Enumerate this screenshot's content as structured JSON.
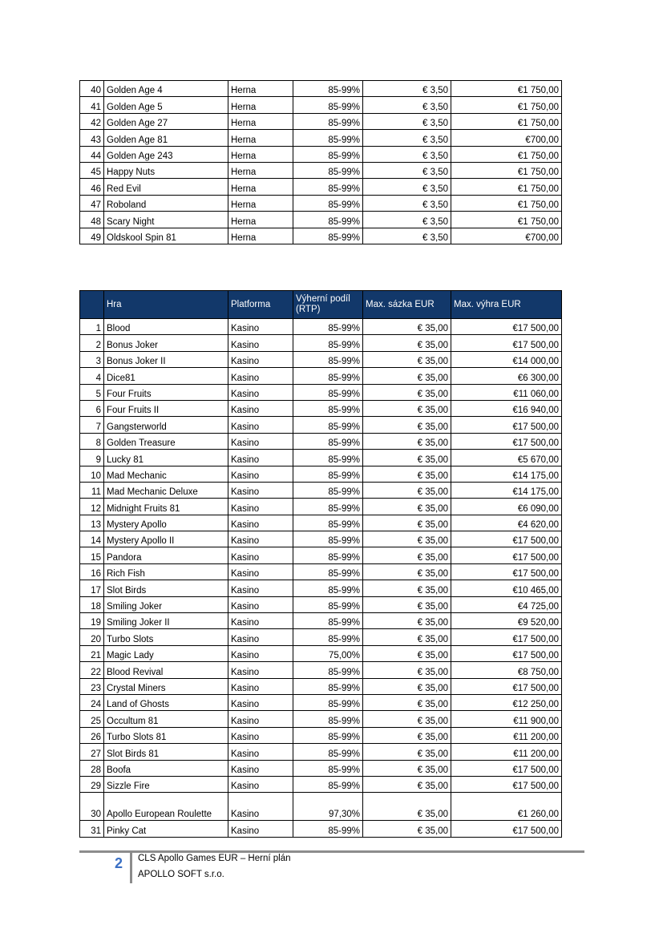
{
  "table1": {
    "rows": [
      [
        "40",
        "Golden Age 4",
        "Herna",
        "85-99%",
        "€ 3,50",
        "€1 750,00"
      ],
      [
        "41",
        "Golden Age 5",
        "Herna",
        "85-99%",
        "€ 3,50",
        "€1 750,00"
      ],
      [
        "42",
        "Golden Age 27",
        "Herna",
        "85-99%",
        "€ 3,50",
        "€1 750,00"
      ],
      [
        "43",
        "Golden Age 81",
        "Herna",
        "85-99%",
        "€ 3,50",
        "€700,00"
      ],
      [
        "44",
        "Golden Age 243",
        "Herna",
        "85-99%",
        "€ 3,50",
        "€1 750,00"
      ],
      [
        "45",
        "Happy Nuts",
        "Herna",
        "85-99%",
        "€ 3,50",
        "€1 750,00"
      ],
      [
        "46",
        "Red Evil",
        "Herna",
        "85-99%",
        "€ 3,50",
        "€1 750,00"
      ],
      [
        "47",
        "Roboland",
        "Herna",
        "85-99%",
        "€ 3,50",
        "€1 750,00"
      ],
      [
        "48",
        "Scary Night",
        "Herna",
        "85-99%",
        "€ 3,50",
        "€1 750,00"
      ],
      [
        "49",
        "Oldskool Spin 81",
        "Herna",
        "85-99%",
        "€ 3,50",
        "€700,00"
      ]
    ]
  },
  "table2": {
    "header": [
      "",
      "Hra",
      "Platforma",
      "Výherní podíl (RTP)",
      "Max. sázka EUR",
      "Max. výhra EUR"
    ],
    "header_color": "#12386a",
    "rows": [
      [
        "1",
        "Blood",
        "Kasino",
        "85-99%",
        "€ 35,00",
        "€17 500,00"
      ],
      [
        "2",
        "Bonus Joker",
        "Kasino",
        "85-99%",
        "€ 35,00",
        "€17 500,00"
      ],
      [
        "3",
        "Bonus Joker II",
        "Kasino",
        "85-99%",
        "€ 35,00",
        "€14 000,00"
      ],
      [
        "4",
        "Dice81",
        "Kasino",
        "85-99%",
        "€ 35,00",
        "€6 300,00"
      ],
      [
        "5",
        "Four Fruits",
        "Kasino",
        "85-99%",
        "€ 35,00",
        "€11 060,00"
      ],
      [
        "6",
        "Four Fruits II",
        "Kasino",
        "85-99%",
        "€ 35,00",
        "€16 940,00"
      ],
      [
        "7",
        "Gangsterworld",
        "Kasino",
        "85-99%",
        "€ 35,00",
        "€17 500,00"
      ],
      [
        "8",
        "Golden Treasure",
        "Kasino",
        "85-99%",
        "€ 35,00",
        "€17 500,00"
      ],
      [
        "9",
        "Lucky 81",
        "Kasino",
        "85-99%",
        "€ 35,00",
        "€5 670,00"
      ],
      [
        "10",
        "Mad Mechanic",
        "Kasino",
        "85-99%",
        "€ 35,00",
        "€14 175,00"
      ],
      [
        "11",
        "Mad Mechanic Deluxe",
        "Kasino",
        "85-99%",
        "€ 35,00",
        "€14 175,00"
      ],
      [
        "12",
        "Midnight Fruits 81",
        "Kasino",
        "85-99%",
        "€ 35,00",
        "€6 090,00"
      ],
      [
        "13",
        "Mystery Apollo",
        "Kasino",
        "85-99%",
        "€ 35,00",
        "€4 620,00"
      ],
      [
        "14",
        "Mystery Apollo II",
        "Kasino",
        "85-99%",
        "€ 35,00",
        "€17 500,00"
      ],
      [
        "15",
        "Pandora",
        "Kasino",
        "85-99%",
        "€ 35,00",
        "€17 500,00"
      ],
      [
        "16",
        "Rich Fish",
        "Kasino",
        "85-99%",
        "€ 35,00",
        "€17 500,00"
      ],
      [
        "17",
        "Slot Birds",
        "Kasino",
        "85-99%",
        "€ 35,00",
        "€10 465,00"
      ],
      [
        "18",
        "Smiling Joker",
        "Kasino",
        "85-99%",
        "€ 35,00",
        "€4 725,00"
      ],
      [
        "19",
        "Smiling Joker II",
        "Kasino",
        "85-99%",
        "€ 35,00",
        "€9 520,00"
      ],
      [
        "20",
        "Turbo Slots",
        "Kasino",
        "85-99%",
        "€ 35,00",
        "€17 500,00"
      ],
      [
        "21",
        "Magic Lady",
        "Kasino",
        "75,00%",
        "€ 35,00",
        "€17 500,00"
      ],
      [
        "22",
        "Blood Revival",
        "Kasino",
        "85-99%",
        "€ 35,00",
        "€8 750,00"
      ],
      [
        "23",
        "Crystal Miners",
        "Kasino",
        "85-99%",
        "€ 35,00",
        "€17 500,00"
      ],
      [
        "24",
        "Land of Ghosts",
        "Kasino",
        "85-99%",
        "€ 35,00",
        "€12 250,00"
      ],
      [
        "25",
        "Occultum 81",
        "Kasino",
        "85-99%",
        "€ 35,00",
        "€11 900,00"
      ],
      [
        "26",
        "Turbo Slots 81",
        "Kasino",
        "85-99%",
        "€ 35,00",
        "€11 200,00"
      ],
      [
        "27",
        "Slot Birds 81",
        "Kasino",
        "85-99%",
        "€ 35,00",
        "€11 200,00"
      ],
      [
        "28",
        "Boofa",
        "Kasino",
        "85-99%",
        "€ 35,00",
        "€17 500,00"
      ],
      [
        "29",
        "Sizzle Fire",
        "Kasino",
        "85-99%",
        "€ 35,00",
        "€17 500,00"
      ],
      [
        "30",
        "Apollo European Roulette",
        "Kasino",
        "97,30%",
        "€ 35,00",
        "€1 260,00"
      ],
      [
        "31",
        "Pinky Cat",
        "Kasino",
        "85-99%",
        "€ 35,00",
        "€17 500,00"
      ]
    ]
  },
  "footer": {
    "page_number": "2",
    "title": "CLS Apollo Games EUR – Herní plán",
    "company": "APOLLO SOFT  s.r.o.",
    "page_number_color": "#3a6fc4"
  }
}
